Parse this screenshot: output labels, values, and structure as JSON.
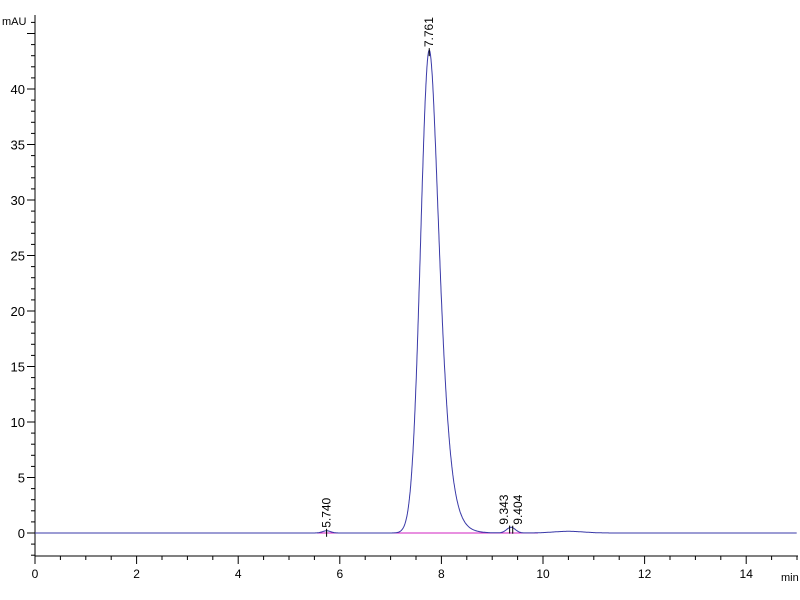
{
  "chart_data": {
    "type": "line",
    "title": "",
    "xlabel": "min",
    "ylabel": "mAU",
    "xlim": [
      0,
      15
    ],
    "ylim": [
      -2.1,
      46.5
    ],
    "x_ticks": [
      0,
      2,
      4,
      6,
      8,
      10,
      12,
      14
    ],
    "x_tick_labels": [
      "0",
      "2",
      "4",
      "6",
      "8",
      "10",
      "12",
      "14"
    ],
    "y_ticks": [
      0,
      5,
      10,
      15,
      20,
      25,
      30,
      35,
      40
    ],
    "y_tick_labels": [
      "0",
      "5",
      "10",
      "15",
      "20",
      "25",
      "30",
      "35",
      "40"
    ],
    "grid": false,
    "colors": {
      "signal": "#3a3aa8",
      "baseline": "#d020c0",
      "axis": "#000000"
    },
    "peaks": [
      {
        "label": "5.740",
        "rt": 5.74,
        "height": 0.2
      },
      {
        "label": "7.761",
        "rt": 7.761,
        "height": 43.5
      },
      {
        "label": "9.343",
        "rt": 9.343,
        "height": 0.3
      },
      {
        "label": "9.404",
        "rt": 9.404,
        "height": 0.25
      }
    ]
  }
}
